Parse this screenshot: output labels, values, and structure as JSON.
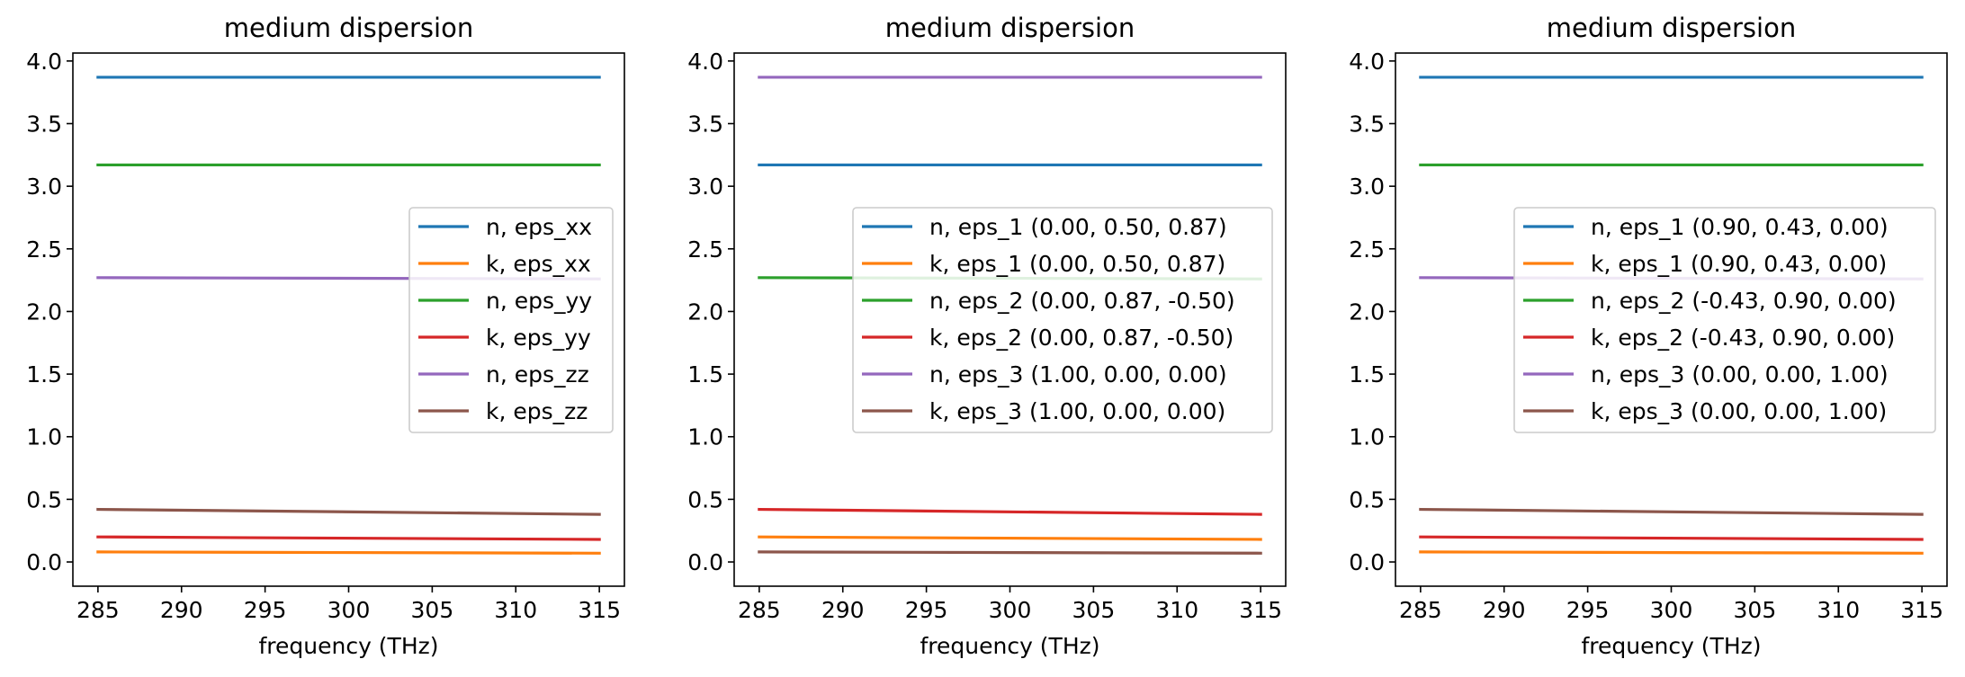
{
  "chart_data": [
    {
      "type": "line",
      "title": "medium dispersion",
      "xlabel": "frequency (THz)",
      "ylabel": "",
      "xlim": [
        283.5,
        316.5
      ],
      "ylim": [
        -0.1935,
        4.0635
      ],
      "xticks": [
        "285",
        "290",
        "295",
        "300",
        "305",
        "310",
        "315"
      ],
      "yticks": [
        "0.0",
        "0.5",
        "1.0",
        "1.5",
        "2.0",
        "2.5",
        "3.0",
        "3.5",
        "4.0"
      ],
      "grid": false,
      "legend_position": "center-right",
      "x": [
        285,
        315
      ],
      "series": [
        {
          "name": "n, eps_xx",
          "color": "#1f77b4",
          "values": [
            3.87,
            3.87
          ]
        },
        {
          "name": "k, eps_xx",
          "color": "#ff7f0e",
          "values": [
            0.08,
            0.07
          ]
        },
        {
          "name": "n, eps_yy",
          "color": "#2ca02c",
          "values": [
            3.17,
            3.17
          ]
        },
        {
          "name": "k, eps_yy",
          "color": "#d62728",
          "values": [
            0.2,
            0.18
          ]
        },
        {
          "name": "n, eps_zz",
          "color": "#9467bd",
          "values": [
            2.27,
            2.26
          ]
        },
        {
          "name": "k, eps_zz",
          "color": "#8c564b",
          "values": [
            0.42,
            0.38
          ]
        }
      ]
    },
    {
      "type": "line",
      "title": "medium dispersion",
      "xlabel": "frequency (THz)",
      "ylabel": "",
      "xlim": [
        283.5,
        316.5
      ],
      "ylim": [
        -0.1935,
        4.0635
      ],
      "xticks": [
        "285",
        "290",
        "295",
        "300",
        "305",
        "310",
        "315"
      ],
      "yticks": [
        "0.0",
        "0.5",
        "1.0",
        "1.5",
        "2.0",
        "2.5",
        "3.0",
        "3.5",
        "4.0"
      ],
      "grid": false,
      "legend_position": "center-right",
      "x": [
        285,
        315
      ],
      "series": [
        {
          "name": "n, eps_1 (0.00, 0.50, 0.87)",
          "color": "#1f77b4",
          "values": [
            3.17,
            3.17
          ]
        },
        {
          "name": "k, eps_1 (0.00, 0.50, 0.87)",
          "color": "#ff7f0e",
          "values": [
            0.2,
            0.18
          ]
        },
        {
          "name": "n, eps_2 (0.00, 0.87, -0.50)",
          "color": "#2ca02c",
          "values": [
            2.27,
            2.26
          ]
        },
        {
          "name": "k, eps_2 (0.00, 0.87, -0.50)",
          "color": "#d62728",
          "values": [
            0.42,
            0.38
          ]
        },
        {
          "name": "n, eps_3 (1.00, 0.00, 0.00)",
          "color": "#9467bd",
          "values": [
            3.87,
            3.87
          ]
        },
        {
          "name": "k, eps_3 (1.00, 0.00, 0.00)",
          "color": "#8c564b",
          "values": [
            0.08,
            0.07
          ]
        }
      ]
    },
    {
      "type": "line",
      "title": "medium dispersion",
      "xlabel": "frequency (THz)",
      "ylabel": "",
      "xlim": [
        283.5,
        316.5
      ],
      "ylim": [
        -0.1935,
        4.0635
      ],
      "xticks": [
        "285",
        "290",
        "295",
        "300",
        "305",
        "310",
        "315"
      ],
      "yticks": [
        "0.0",
        "0.5",
        "1.0",
        "1.5",
        "2.0",
        "2.5",
        "3.0",
        "3.5",
        "4.0"
      ],
      "grid": false,
      "legend_position": "center-right",
      "x": [
        285,
        315
      ],
      "series": [
        {
          "name": "n, eps_1 (0.90, 0.43, 0.00)",
          "color": "#1f77b4",
          "values": [
            3.87,
            3.87
          ]
        },
        {
          "name": "k, eps_1 (0.90, 0.43, 0.00)",
          "color": "#ff7f0e",
          "values": [
            0.08,
            0.07
          ]
        },
        {
          "name": "n, eps_2 (-0.43, 0.90, 0.00)",
          "color": "#2ca02c",
          "values": [
            3.17,
            3.17
          ]
        },
        {
          "name": "k, eps_2 (-0.43, 0.90, 0.00)",
          "color": "#d62728",
          "values": [
            0.2,
            0.18
          ]
        },
        {
          "name": "n, eps_3 (0.00, 0.00, 1.00)",
          "color": "#9467bd",
          "values": [
            2.27,
            2.26
          ]
        },
        {
          "name": "k, eps_3 (0.00, 0.00, 1.00)",
          "color": "#8c564b",
          "values": [
            0.42,
            0.38
          ]
        }
      ]
    }
  ]
}
